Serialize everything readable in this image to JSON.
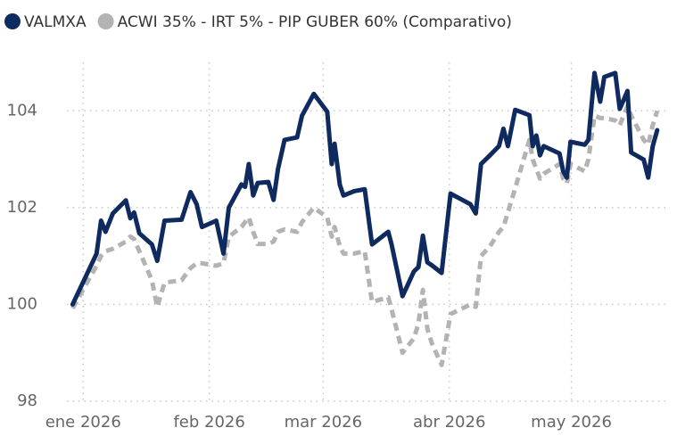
{
  "chart_data": {
    "type": "line",
    "xlim": [
      -4,
      144
    ],
    "xticks": [
      {
        "value": 0,
        "label": "ene 2026"
      },
      {
        "value": 31,
        "label": "feb 2026"
      },
      {
        "value": 59,
        "label": "mar 2026"
      },
      {
        "value": 90,
        "label": "abr 2026"
      },
      {
        "value": 120,
        "label": "may 2026"
      }
    ],
    "ylim": [
      98,
      105
    ],
    "yticks": [
      98,
      100,
      102,
      104
    ],
    "grid": true,
    "legend": "top",
    "x": [
      -2.6,
      3.3,
      4.4,
      5.5,
      7.3,
      10.5,
      11.6,
      12.5,
      13.8,
      16.9,
      18.2,
      20,
      24.2,
      26.4,
      27.9,
      29.2,
      32.7,
      34.5,
      35.8,
      38.9,
      39.8,
      40.7,
      41.8,
      42.9,
      45.5,
      46.8,
      47.9,
      49.5,
      52.6,
      53.8,
      56.7,
      60,
      61.1,
      61.8,
      63.1,
      64,
      66.6,
      69.2,
      71,
      75,
      75.8,
      78.5,
      81.3,
      82.4,
      83.5,
      84.6,
      85.7,
      88.1,
      90.3,
      95.2,
      96.5,
      97.8,
      100,
      102.2,
      103.3,
      104.4,
      106.2,
      109.7,
      110.5,
      111.4,
      112.3,
      113.2,
      117.1,
      118,
      118.9,
      119.8,
      123.3,
      124.2,
      125.7,
      127.1,
      128.1,
      130.8,
      131.9,
      133.8,
      134.7,
      137.8,
      138.9,
      140,
      141.1
    ],
    "series": [
      {
        "name": "VALMXA",
        "color": "#0e2a5e",
        "dash": false,
        "values": [
          100.0,
          101.05,
          101.73,
          101.5,
          101.88,
          102.15,
          101.78,
          101.9,
          101.47,
          101.24,
          100.9,
          101.73,
          101.75,
          102.32,
          102.07,
          101.6,
          101.73,
          101.05,
          102.0,
          102.48,
          102.43,
          102.9,
          102.25,
          102.51,
          102.53,
          102.16,
          102.8,
          103.4,
          103.45,
          103.9,
          104.35,
          103.98,
          102.9,
          103.32,
          102.47,
          102.25,
          102.34,
          102.38,
          101.24,
          101.5,
          101.24,
          100.17,
          100.68,
          100.77,
          101.42,
          100.87,
          100.81,
          100.65,
          102.29,
          102.07,
          101.88,
          102.9,
          103.08,
          103.27,
          103.63,
          103.27,
          104.02,
          103.91,
          103.27,
          103.49,
          103.08,
          103.27,
          103.12,
          102.75,
          102.62,
          103.36,
          103.3,
          103.4,
          104.78,
          104.19,
          104.7,
          104.78,
          104.04,
          104.41,
          103.14,
          102.99,
          102.62,
          103.27,
          103.6
        ]
      },
      {
        "name": "ACWI 35% - IRT 5% - PIP GUBER 60% (Comparativo)",
        "color": "#b3b3b3",
        "dash": true,
        "values": [
          99.92,
          100.8,
          101.0,
          101.1,
          101.15,
          101.3,
          101.4,
          101.35,
          101.1,
          100.5,
          99.95,
          100.45,
          100.5,
          100.75,
          100.85,
          100.85,
          100.8,
          100.85,
          101.4,
          101.6,
          101.7,
          101.8,
          101.5,
          101.25,
          101.25,
          101.3,
          101.5,
          101.55,
          101.5,
          101.7,
          102.0,
          101.8,
          101.4,
          101.6,
          101.2,
          101.05,
          101.05,
          101.1,
          100.05,
          100.15,
          99.9,
          99.0,
          99.3,
          99.6,
          100.3,
          99.5,
          99.2,
          98.75,
          99.8,
          100.0,
          99.95,
          101.0,
          101.2,
          101.5,
          101.6,
          101.9,
          102.4,
          103.4,
          103.0,
          102.8,
          102.6,
          102.7,
          102.9,
          102.6,
          102.5,
          102.9,
          102.75,
          103.0,
          103.9,
          103.85,
          103.85,
          103.8,
          103.7,
          104.1,
          103.9,
          103.4,
          103.3,
          103.7,
          104.0
        ]
      }
    ]
  }
}
